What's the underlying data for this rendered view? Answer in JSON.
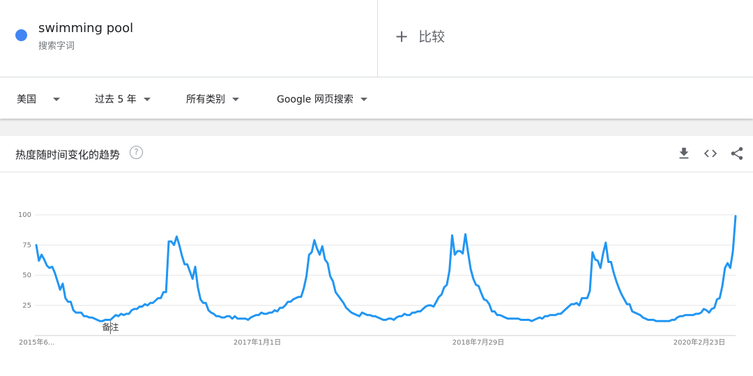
{
  "term": {
    "name": "swimming pool",
    "subtitle": "搜索字词",
    "color": "#4285f4"
  },
  "compare": {
    "label": "比较"
  },
  "filters": [
    {
      "label": "美国"
    },
    {
      "label": "过去 5 年"
    },
    {
      "label": "所有类别"
    },
    {
      "label": "Google 网页搜索"
    }
  ],
  "card": {
    "title": "热度随时间变化的趋势",
    "help": "?"
  },
  "icons": {
    "download": "download-icon",
    "embed": "embed-code-icon",
    "share": "share-icon"
  },
  "chart_data": {
    "type": "line",
    "title": "",
    "xlabel": "",
    "ylabel": "",
    "ylim": [
      0,
      100
    ],
    "yticks": [
      25,
      50,
      75,
      100
    ],
    "grid": true,
    "line_color": "#2196f3",
    "x_tick_labels": [
      "2015年6...",
      "2017年1月1日",
      "2018年7月29日",
      "2020年2月23日"
    ],
    "annotation": "备注",
    "series": [
      {
        "values": [
          75,
          62,
          67,
          63,
          58,
          56,
          57,
          52,
          45,
          38,
          43,
          31,
          28,
          28,
          21,
          19,
          19,
          19,
          16,
          16,
          15,
          15,
          14,
          13,
          12,
          12,
          13,
          13,
          13,
          15,
          17,
          16,
          18,
          17,
          18,
          18,
          21,
          22,
          22,
          24,
          24,
          26,
          25,
          27,
          27,
          29,
          31,
          31,
          36,
          36,
          78,
          78,
          75,
          82,
          75,
          66,
          59,
          59,
          53,
          47,
          57,
          40,
          30,
          27,
          27,
          21,
          19,
          18,
          16,
          16,
          15,
          15,
          16,
          16,
          14,
          16,
          14,
          14,
          14,
          14,
          13,
          15,
          16,
          17,
          17,
          19,
          18,
          18,
          19,
          19,
          21,
          20,
          23,
          23,
          25,
          28,
          28,
          30,
          31,
          32,
          32,
          39,
          49,
          67,
          69,
          79,
          72,
          67,
          74,
          63,
          60,
          49,
          45,
          36,
          33,
          30,
          27,
          23,
          21,
          19,
          18,
          17,
          16,
          19,
          18,
          17,
          17,
          16,
          16,
          15,
          14,
          13,
          13,
          14,
          14,
          13,
          15,
          16,
          16,
          18,
          17,
          17,
          19,
          19,
          20,
          20,
          22,
          24,
          25,
          25,
          24,
          28,
          32,
          34,
          40,
          42,
          54,
          83,
          67,
          70,
          70,
          68,
          84,
          69,
          55,
          47,
          42,
          41,
          35,
          30,
          29,
          26,
          20,
          20,
          17,
          17,
          16,
          15,
          14,
          14,
          14,
          14,
          14,
          13,
          13,
          13,
          13,
          12,
          13,
          14,
          15,
          14,
          16,
          16,
          17,
          17,
          17,
          18,
          18,
          20,
          22,
          24,
          26,
          26,
          27,
          25,
          31,
          31,
          31,
          37,
          69,
          63,
          62,
          56,
          68,
          77,
          61,
          61,
          52,
          45,
          39,
          34,
          30,
          26,
          26,
          20,
          19,
          18,
          17,
          15,
          14,
          13,
          13,
          13,
          12,
          12,
          12,
          12,
          12,
          12,
          13,
          13,
          15,
          16,
          16,
          17,
          17,
          17,
          17,
          18,
          18,
          19,
          22,
          21,
          19,
          22,
          23,
          30,
          31,
          41,
          56,
          60,
          56,
          70,
          99
        ]
      }
    ]
  }
}
